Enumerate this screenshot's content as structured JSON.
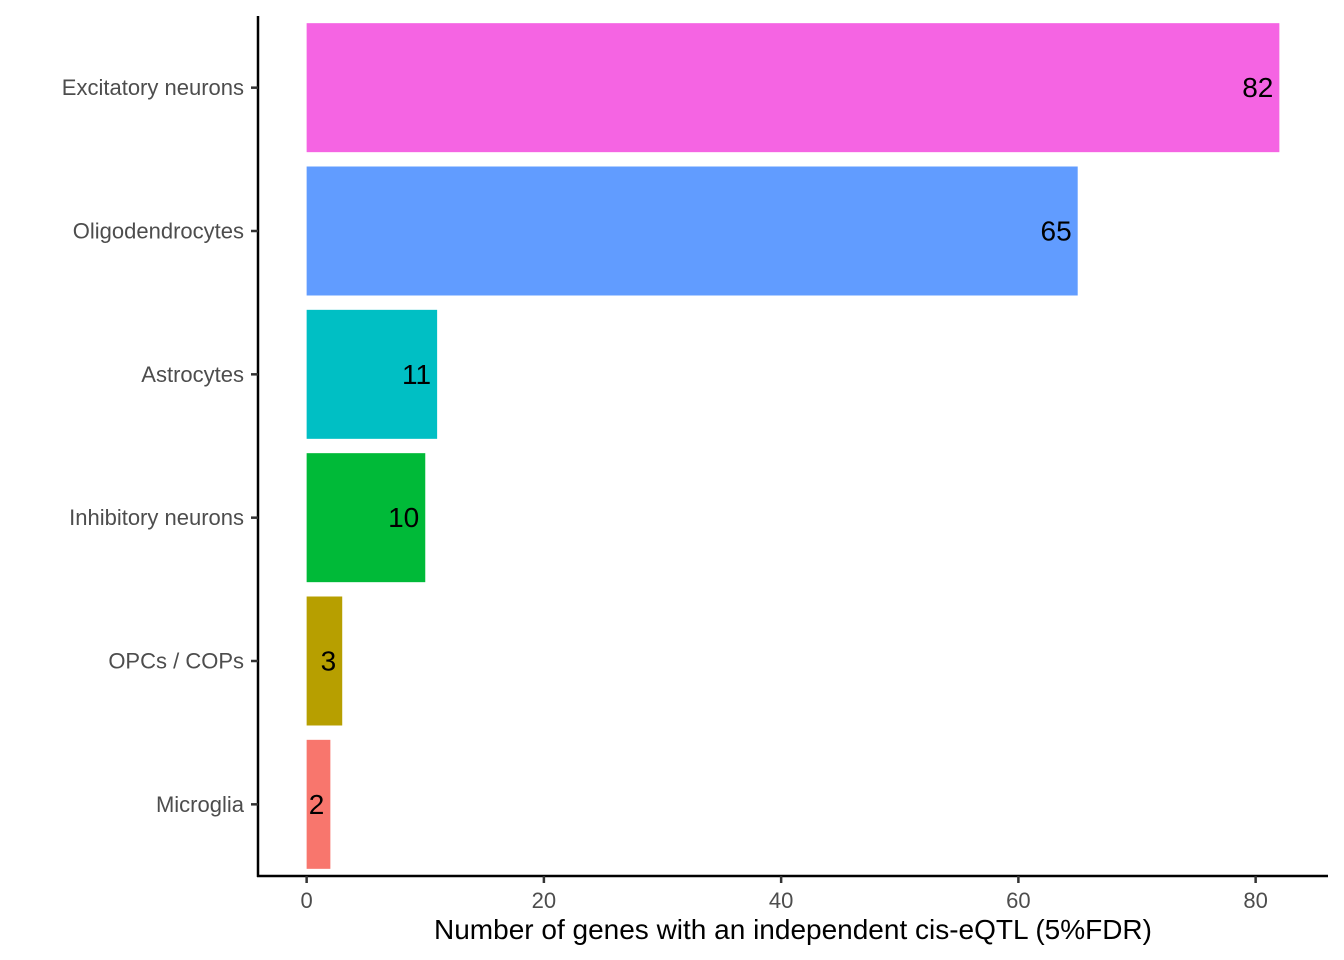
{
  "chart_data": {
    "type": "bar",
    "orientation": "horizontal",
    "categories": [
      "Excitatory neurons",
      "Oligodendrocytes",
      "Astrocytes",
      "Inhibitory neurons",
      "OPCs / COPs",
      "Microglia"
    ],
    "values": [
      82,
      65,
      11,
      10,
      3,
      2
    ],
    "data_labels": [
      "82",
      "65",
      "11",
      "10",
      "3",
      "2"
    ],
    "colors": [
      "#F564E3",
      "#619CFF",
      "#00BFC4",
      "#00BA38",
      "#B79F00",
      "#F8766D"
    ],
    "xlabel": "Number of genes with an independent cis-eQTL (5%FDR)",
    "ylabel": "",
    "xlim": [
      -4.1,
      86.1
    ],
    "x_ticks": [
      0,
      20,
      40,
      60,
      80
    ],
    "x_tick_labels": [
      "0",
      "20",
      "40",
      "60",
      "80"
    ],
    "grid": false,
    "legend": "none"
  }
}
